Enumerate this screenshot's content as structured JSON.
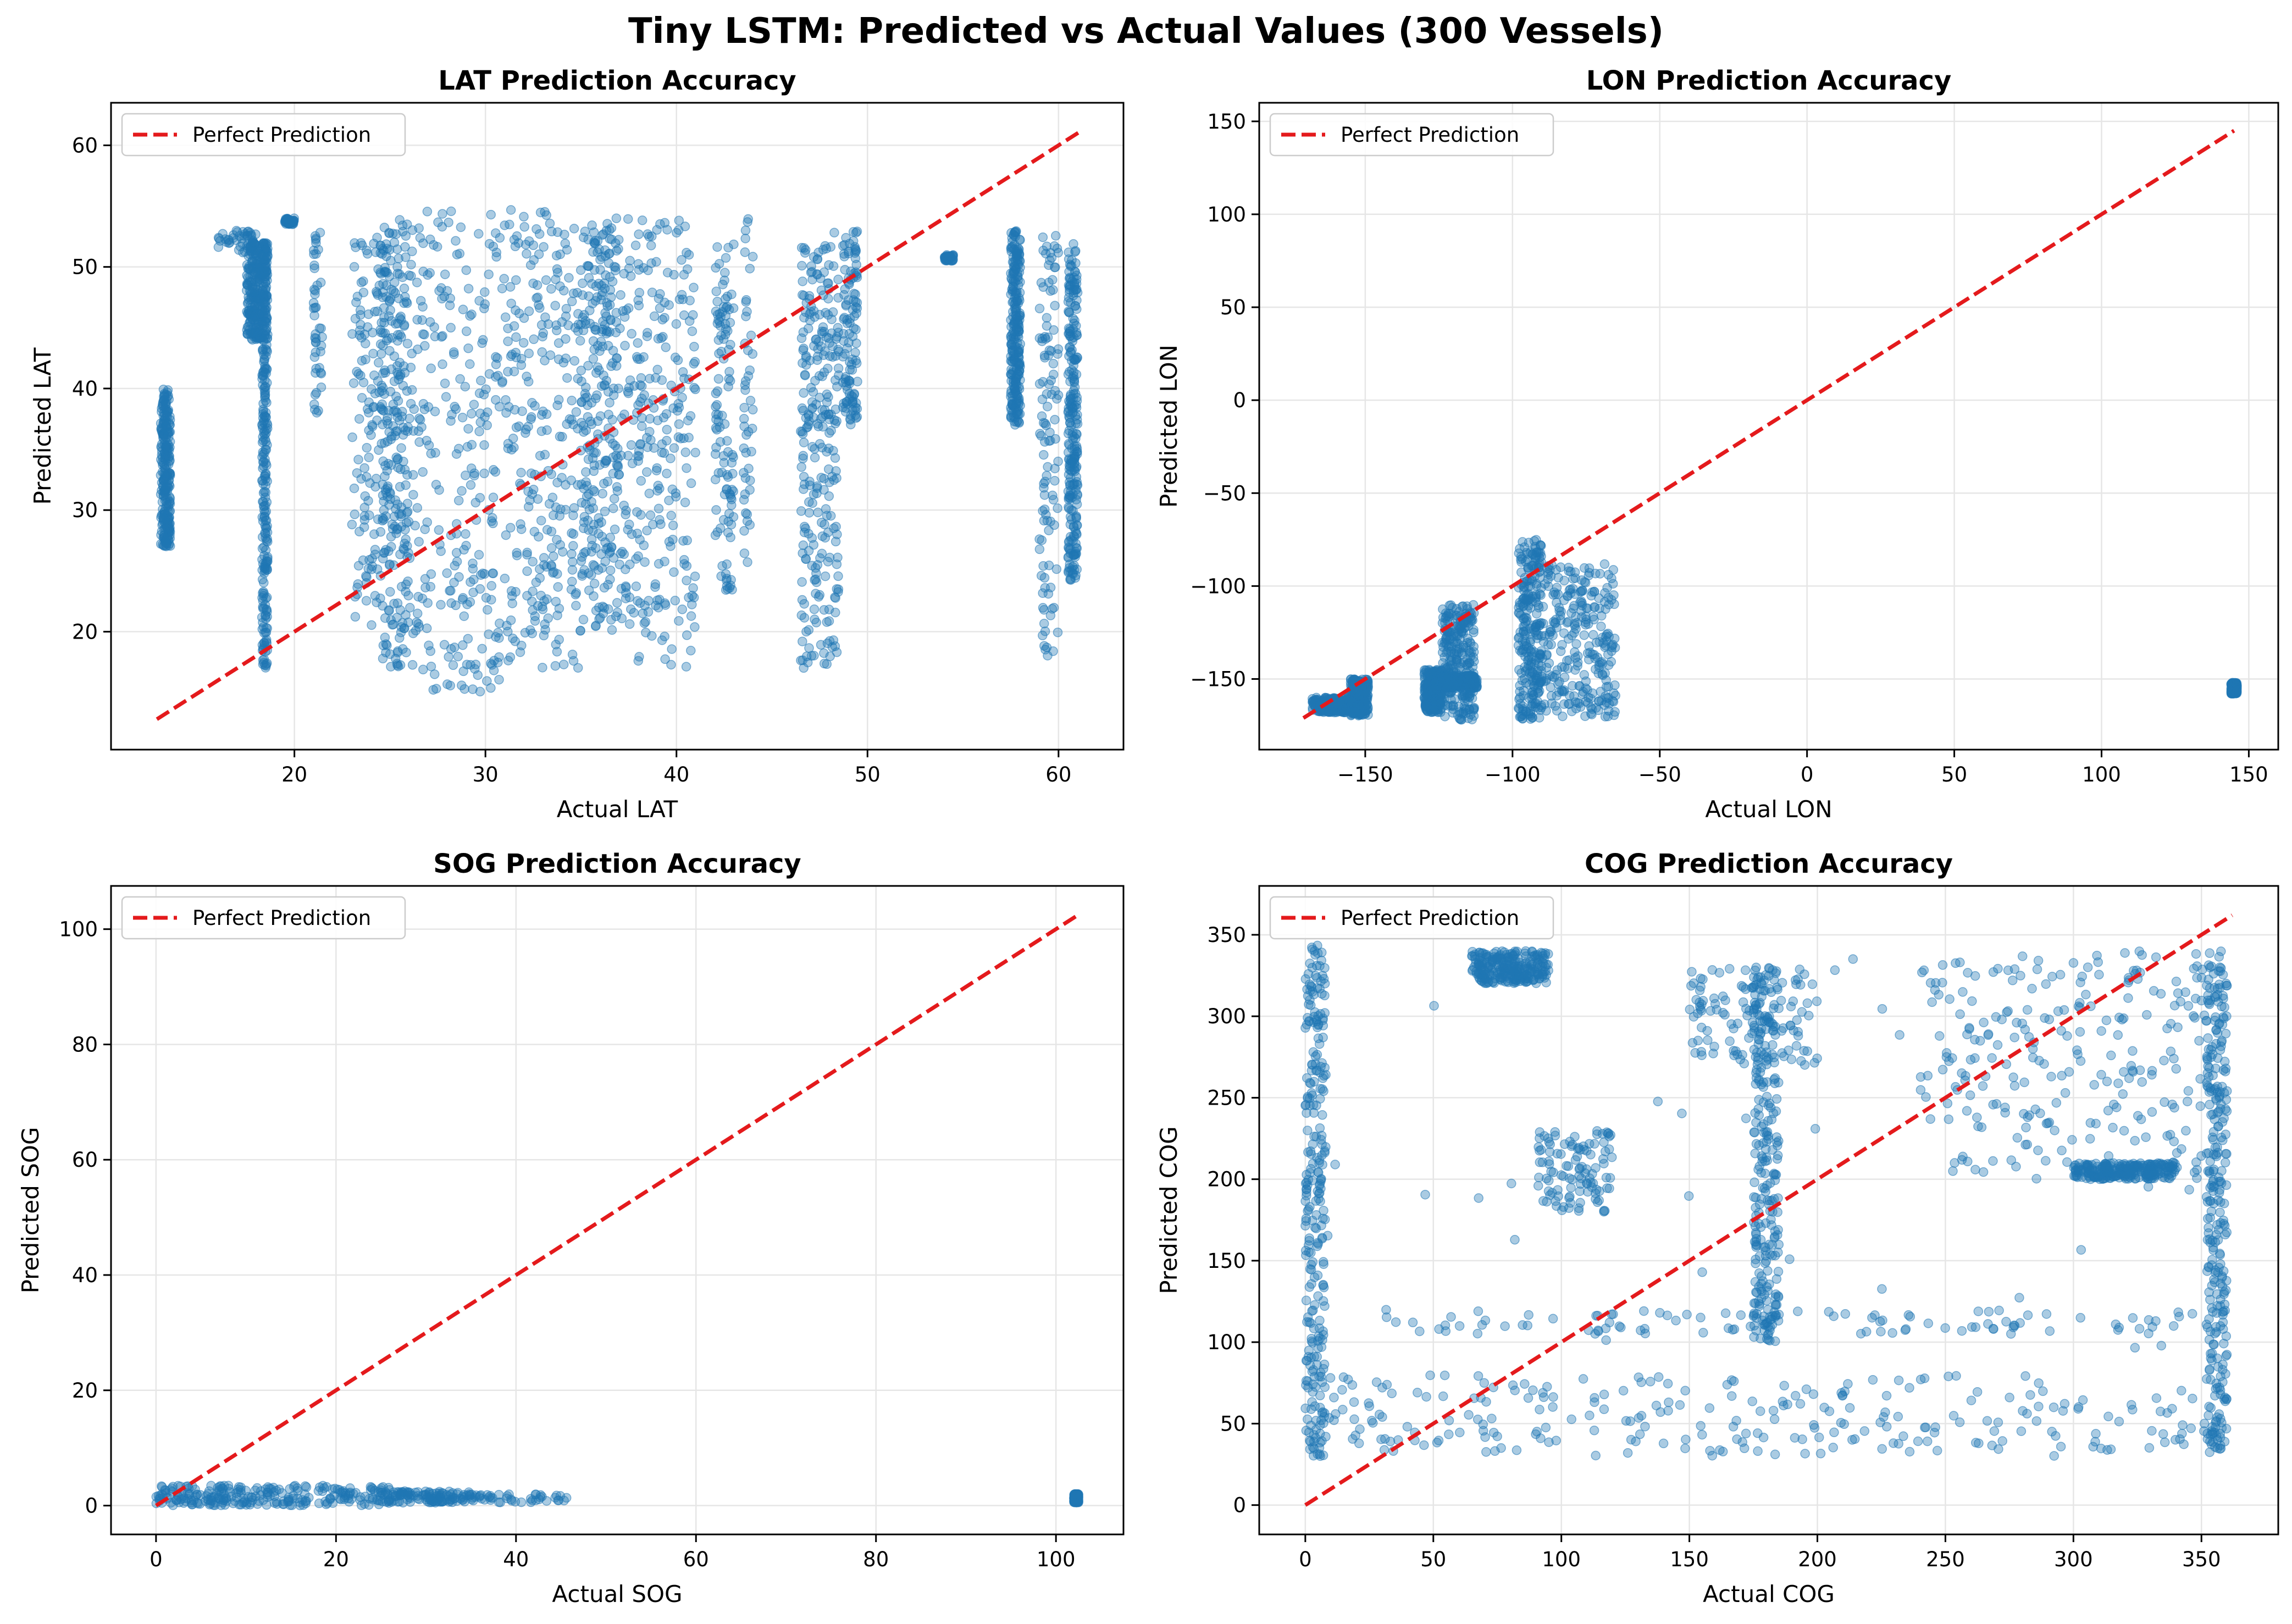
{
  "figure_title": "Tiny LSTM: Predicted vs Actual Values (300 Vessels)",
  "colors": {
    "points": "#1f77b4",
    "reference_line": "#e41a1c",
    "grid": "#e6e6e6",
    "axes": "#000000"
  },
  "chart_data": [
    {
      "type": "scatter",
      "title": "LAT Prediction Accuracy",
      "xlabel": "Actual LAT",
      "ylabel": "Predicted LAT",
      "xlim": [
        10.4,
        63.4
      ],
      "ylim": [
        10.3,
        63.5
      ],
      "xticks": [
        20,
        30,
        40,
        50,
        60
      ],
      "yticks": [
        20,
        30,
        40,
        50,
        60
      ],
      "grid": true,
      "legend": {
        "placement": "top-left",
        "entries": [
          "Perfect Prediction"
        ]
      },
      "reference_line": {
        "name": "Perfect Prediction",
        "from": [
          12.8,
          12.8
        ],
        "to": [
          61.2,
          61.2
        ],
        "style": "dashed"
      },
      "clusters": [
        {
          "x": [
            13,
            13.5
          ],
          "y": [
            27,
            40
          ],
          "density": "dense"
        },
        {
          "x": [
            16,
            18
          ],
          "y": [
            51,
            53
          ],
          "density": "light"
        },
        {
          "x": [
            17.5,
            18.6
          ],
          "y": [
            44,
            52
          ],
          "density": "dense"
        },
        {
          "x": [
            18.3,
            18.6
          ],
          "y": [
            17,
            52
          ],
          "density": "dense"
        },
        {
          "x": [
            19.5,
            20
          ],
          "y": [
            53.5,
            54
          ],
          "density": "light"
        },
        {
          "x": [
            21,
            21.5
          ],
          "y": [
            38,
            53
          ],
          "density": "light"
        },
        {
          "x": [
            23,
            24.5
          ],
          "y": [
            20,
            53
          ],
          "density": "medium"
        },
        {
          "x": [
            24.5,
            26
          ],
          "y": [
            17,
            54
          ],
          "density": "dense"
        },
        {
          "x": [
            26,
            31
          ],
          "y": [
            15,
            55
          ],
          "density": "dense"
        },
        {
          "x": [
            31,
            35
          ],
          "y": [
            17,
            55
          ],
          "density": "dense"
        },
        {
          "x": [
            35,
            37
          ],
          "y": [
            20,
            54
          ],
          "density": "dense"
        },
        {
          "x": [
            37,
            41
          ],
          "y": [
            17,
            54
          ],
          "density": "dense"
        },
        {
          "x": [
            42,
            43
          ],
          "y": [
            23,
            52
          ],
          "density": "medium"
        },
        {
          "x": [
            43.5,
            44
          ],
          "y": [
            25,
            54
          ],
          "density": "light"
        },
        {
          "x": [
            46.5,
            48.5
          ],
          "y": [
            17,
            53
          ],
          "density": "dense"
        },
        {
          "x": [
            48.7,
            49.5
          ],
          "y": [
            37,
            53
          ],
          "density": "medium"
        },
        {
          "x": [
            54,
            54.5
          ],
          "y": [
            50.5,
            51
          ],
          "density": "light"
        },
        {
          "x": [
            57.5,
            58
          ],
          "y": [
            37,
            53
          ],
          "density": "dense"
        },
        {
          "x": [
            59,
            60
          ],
          "y": [
            18,
            53
          ],
          "density": "medium"
        },
        {
          "x": [
            60.5,
            61
          ],
          "y": [
            24,
            52
          ],
          "density": "dense"
        }
      ]
    },
    {
      "type": "scatter",
      "title": "LON Prediction Accuracy",
      "xlabel": "Actual LON",
      "ylabel": "Predicted LON",
      "xlim": [
        -186,
        160
      ],
      "ylim": [
        -188,
        160
      ],
      "xticks": [
        -150,
        -100,
        -50,
        0,
        50,
        100,
        150
      ],
      "yticks": [
        -150,
        -100,
        -50,
        0,
        50,
        100,
        150
      ],
      "grid": true,
      "legend": {
        "placement": "top-left",
        "entries": [
          "Perfect Prediction"
        ]
      },
      "reference_line": {
        "name": "Perfect Prediction",
        "from": [
          -171,
          -171
        ],
        "to": [
          145,
          145
        ],
        "style": "dashed"
      },
      "clusters": [
        {
          "x": [
            -168,
            -152
          ],
          "y": [
            -168,
            -160
          ],
          "density": "dense"
        },
        {
          "x": [
            -155,
            -149
          ],
          "y": [
            -170,
            -150
          ],
          "density": "dense"
        },
        {
          "x": [
            -130,
            -124
          ],
          "y": [
            -168,
            -145
          ],
          "density": "dense"
        },
        {
          "x": [
            -124,
            -113
          ],
          "y": [
            -172,
            -110
          ],
          "density": "dense"
        },
        {
          "x": [
            -124,
            -112
          ],
          "y": [
            -155,
            -148
          ],
          "density": "dense"
        },
        {
          "x": [
            -98,
            -90
          ],
          "y": [
            -172,
            -75
          ],
          "density": "dense"
        },
        {
          "x": [
            -90,
            -65
          ],
          "y": [
            -172,
            -88
          ],
          "density": "dense"
        },
        {
          "x": [
            144,
            146
          ],
          "y": [
            -158,
            -152
          ],
          "density": "dense"
        }
      ]
    },
    {
      "type": "scatter",
      "title": "SOG Prediction Accuracy",
      "xlabel": "Actual SOG",
      "ylabel": "Predicted SOG",
      "xlim": [
        -5,
        107.5
      ],
      "ylim": [
        -5,
        107.5
      ],
      "xticks": [
        0,
        20,
        40,
        60,
        80,
        100
      ],
      "yticks": [
        0,
        20,
        40,
        60,
        80,
        100
      ],
      "grid": true,
      "legend": {
        "placement": "top-left",
        "entries": [
          "Perfect Prediction"
        ]
      },
      "reference_line": {
        "name": "Perfect Prediction",
        "from": [
          0,
          0
        ],
        "to": [
          102.3,
          102.3
        ],
        "style": "dashed"
      },
      "clusters": [
        {
          "x": [
            0,
            26
          ],
          "y": [
            0,
            3.5
          ],
          "density": "dense"
        },
        {
          "x": [
            26,
            35
          ],
          "y": [
            0.5,
            2.5
          ],
          "density": "medium"
        },
        {
          "x": [
            35,
            46
          ],
          "y": [
            0.5,
            2
          ],
          "density": "light"
        },
        {
          "x": [
            102,
            102.5
          ],
          "y": [
            0.5,
            2
          ],
          "density": "dense"
        }
      ]
    },
    {
      "type": "scatter",
      "title": "COG Prediction Accuracy",
      "xlabel": "Actual COG",
      "ylabel": "Predicted COG",
      "xlim": [
        -18,
        380
      ],
      "ylim": [
        -18,
        380
      ],
      "xticks": [
        0,
        50,
        100,
        150,
        200,
        250,
        300,
        350
      ],
      "yticks": [
        0,
        50,
        100,
        150,
        200,
        250,
        300,
        350
      ],
      "grid": true,
      "legend": {
        "placement": "top-left",
        "entries": [
          "Perfect Prediction"
        ]
      },
      "reference_line": {
        "name": "Perfect Prediction",
        "from": [
          0,
          0
        ],
        "to": [
          362,
          362
        ],
        "style": "dashed"
      },
      "clusters": [
        {
          "x": [
            0,
            360
          ],
          "y": [
            30,
            80
          ],
          "density": "dense"
        },
        {
          "x": [
            0,
            8
          ],
          "y": [
            30,
            345
          ],
          "density": "dense"
        },
        {
          "x": [
            0,
            360
          ],
          "y": [
            30,
            345
          ],
          "density": "light"
        },
        {
          "x": [
            240,
            360
          ],
          "y": [
            200,
            340
          ],
          "density": "dense"
        },
        {
          "x": [
            352,
            360
          ],
          "y": [
            30,
            340
          ],
          "density": "dense"
        },
        {
          "x": [
            65,
            95
          ],
          "y": [
            320,
            340
          ],
          "density": "dense"
        },
        {
          "x": [
            175,
            185
          ],
          "y": [
            100,
            330
          ],
          "density": "dense"
        },
        {
          "x": [
            30,
            360
          ],
          "y": [
            105,
            120
          ],
          "density": "medium"
        },
        {
          "x": [
            150,
            200
          ],
          "y": [
            270,
            330
          ],
          "density": "medium"
        },
        {
          "x": [
            90,
            120
          ],
          "y": [
            180,
            230
          ],
          "density": "medium"
        },
        {
          "x": [
            300,
            340
          ],
          "y": [
            200,
            210
          ],
          "density": "dense"
        }
      ]
    }
  ]
}
